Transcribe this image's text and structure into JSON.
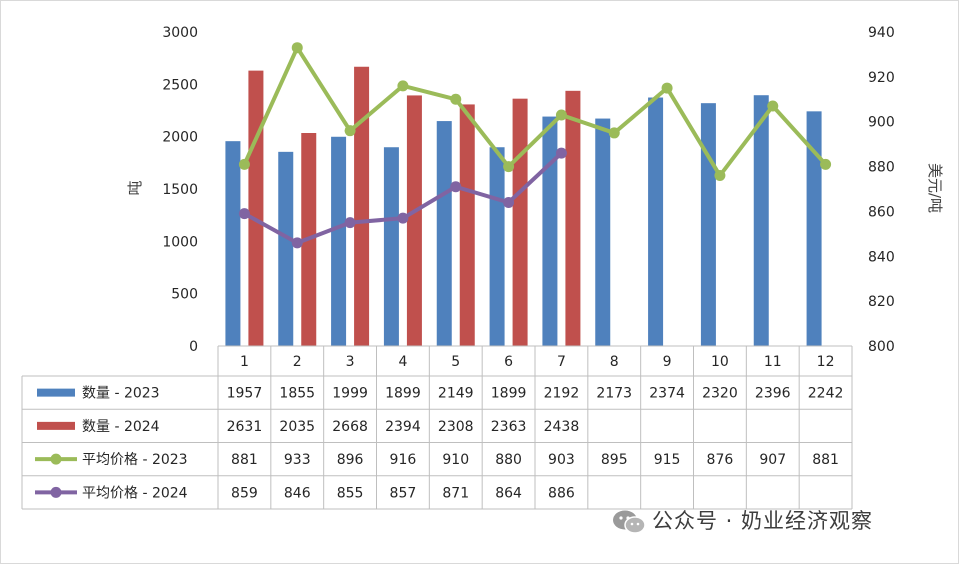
{
  "chart_data": {
    "type": "bar",
    "categories": [
      "1",
      "2",
      "3",
      "4",
      "5",
      "6",
      "7",
      "8",
      "9",
      "10",
      "11",
      "12"
    ],
    "series": [
      {
        "name": "数量 - 2023",
        "kind": "bar",
        "axis": "left",
        "color": "#4f81bd",
        "values": [
          1957,
          1855,
          1999,
          1899,
          2149,
          1899,
          2192,
          2173,
          2374,
          2320,
          2396,
          2242
        ]
      },
      {
        "name": "数量 - 2024",
        "kind": "bar",
        "axis": "left",
        "color": "#c0504d",
        "values": [
          2631,
          2035,
          2668,
          2394,
          2308,
          2363,
          2438,
          null,
          null,
          null,
          null,
          null
        ]
      },
      {
        "name": "平均价格 - 2023",
        "kind": "line",
        "axis": "right",
        "color": "#9bbb59",
        "values": [
          881,
          933,
          896,
          916,
          910,
          880,
          903,
          895,
          915,
          876,
          907,
          881
        ]
      },
      {
        "name": "平均价格 - 2024",
        "kind": "line",
        "axis": "right",
        "color": "#8064a2",
        "values": [
          859,
          846,
          855,
          857,
          871,
          864,
          886,
          null,
          null,
          null,
          null,
          null
        ]
      }
    ],
    "ylabel": "吨",
    "y2label": "美元/吨",
    "ylim": [
      0,
      3000
    ],
    "y2lim": [
      800,
      940
    ],
    "yticks": [
      "3000",
      "2500",
      "2000",
      "1500",
      "1000",
      "500",
      "0"
    ],
    "y2ticks": [
      "940",
      "920",
      "900",
      "880",
      "860",
      "840",
      "820",
      "800"
    ],
    "data_table": true,
    "grid": false
  },
  "watermark": {
    "text": "公众号 · 奶业经济观察",
    "icon": "wechat-icon"
  }
}
